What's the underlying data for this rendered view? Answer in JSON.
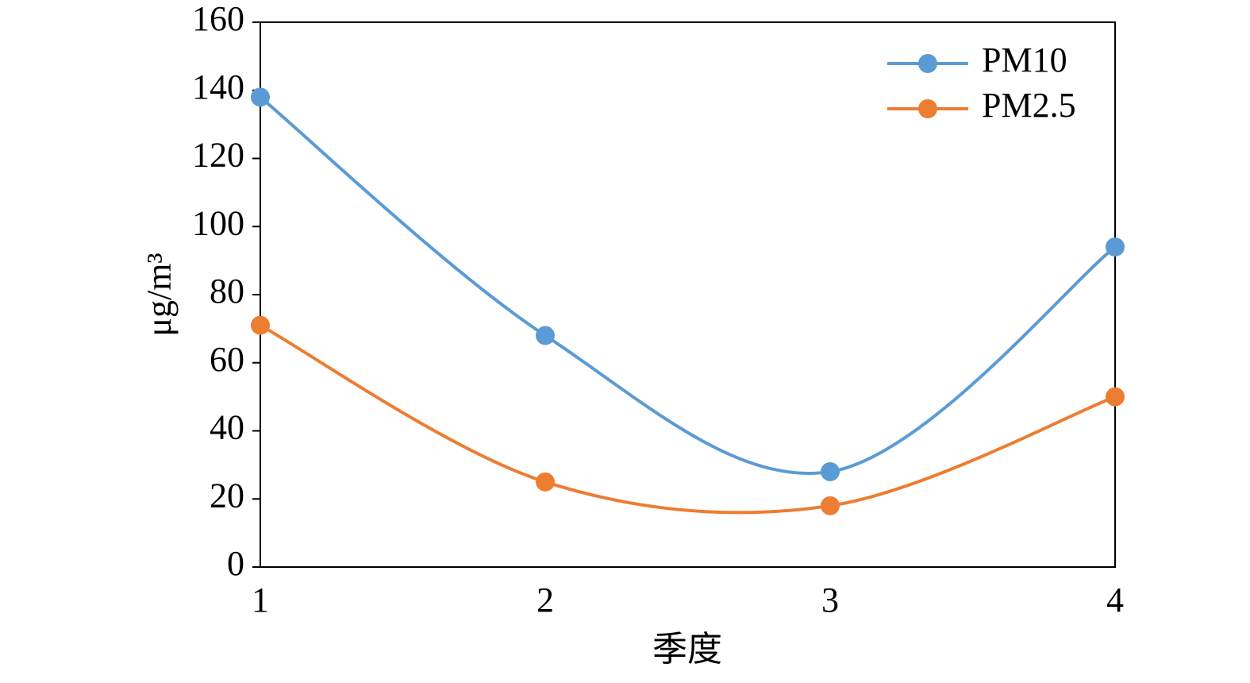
{
  "chart_data": {
    "type": "line",
    "x_label": "季度",
    "y_label": "μg/m³",
    "x": [
      1,
      2,
      3,
      4
    ],
    "series": [
      {
        "name": "PM10",
        "color": "#5b9bd5",
        "values": [
          138,
          68,
          28,
          94
        ]
      },
      {
        "name": "PM2.5",
        "color": "#ed7d31",
        "values": [
          71,
          25,
          18,
          50
        ]
      }
    ],
    "xlim": [
      1,
      4
    ],
    "xticks": [
      1,
      2,
      3,
      4
    ],
    "ylim": [
      0,
      160
    ],
    "yticks": [
      0,
      20,
      40,
      60,
      80,
      100,
      120,
      140,
      160
    ],
    "smooth": true,
    "legend": "top-right"
  }
}
